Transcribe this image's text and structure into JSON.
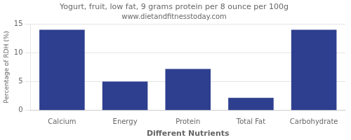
{
  "chart_data": {
    "type": "bar",
    "title": "Yogurt, fruit, low fat, 9 grams protein per 8 ounce per 100g",
    "subtitle": "www.dietandfitnesstoday.com",
    "categories": [
      "Calcium",
      "Energy",
      "Protein",
      "Total Fat",
      "Carbohydrate"
    ],
    "values": [
      14.0,
      5.0,
      7.2,
      2.2,
      14.0
    ],
    "color": "#2e3f8f",
    "xlabel": "Different Nutrients",
    "ylabel": "Percentage of RDH (%)",
    "ylim": [
      0,
      15
    ],
    "yticks": [
      0,
      5,
      10,
      15
    ],
    "grid": true
  }
}
